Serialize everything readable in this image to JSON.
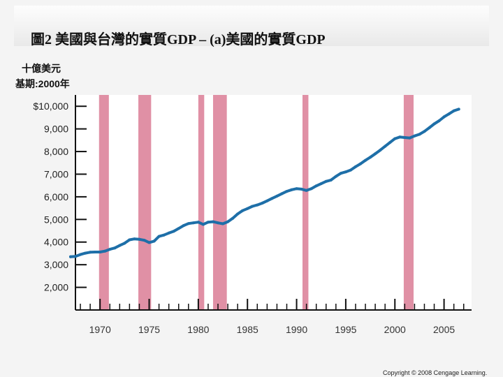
{
  "header": {
    "title": "圖2 美國與台灣的實質GDP – (a)美國的實質GDP",
    "unit_line1": "十億美元",
    "unit_line2": "基期:2000年"
  },
  "footer": {
    "copyright": "Copyright © 2008 Cengage Learning."
  },
  "colors": {
    "line": "#1e6fa8",
    "recession": "#e090a5",
    "axis": "#111111"
  },
  "chart_data": {
    "type": "line",
    "title": "美國的實質GDP",
    "xlabel": "",
    "ylabel": "十億美元 基期:2000年",
    "xlim": [
      1967.5,
      2007.8
    ],
    "ylim": [
      1000,
      10500
    ],
    "x_tick_values": [
      1970,
      1975,
      1980,
      1985,
      1990,
      1995,
      2000,
      2005
    ],
    "x_tick_labels": [
      "1970",
      "1975",
      "1980",
      "1985",
      "1990",
      "1995",
      "2000",
      "2005"
    ],
    "y_tick_values": [
      10000,
      9000,
      8000,
      7000,
      6000,
      5000,
      4000,
      3000,
      2000
    ],
    "y_tick_labels": [
      "$10,000",
      "9,000",
      "8,000",
      "7,000",
      "6,000",
      "5,000",
      "4,000",
      "3,000",
      "2,000"
    ],
    "recessions": [
      {
        "start": 1969.9,
        "end": 1970.9
      },
      {
        "start": 1973.9,
        "end": 1975.2
      },
      {
        "start": 1980.0,
        "end": 1980.6
      },
      {
        "start": 1981.5,
        "end": 1982.9
      },
      {
        "start": 1990.6,
        "end": 1991.2
      },
      {
        "start": 2000.9,
        "end": 2001.9
      }
    ],
    "series": [
      {
        "name": "美國實質GDP",
        "x": [
          1967.0,
          1967.5,
          1968.0,
          1968.5,
          1969.0,
          1969.5,
          1970.0,
          1970.5,
          1971.0,
          1971.5,
          1972.0,
          1972.5,
          1973.0,
          1973.5,
          1974.0,
          1974.5,
          1975.0,
          1975.5,
          1976.0,
          1976.5,
          1977.0,
          1977.5,
          1978.0,
          1978.5,
          1979.0,
          1979.5,
          1980.0,
          1980.5,
          1981.0,
          1981.5,
          1982.0,
          1982.5,
          1983.0,
          1983.5,
          1984.0,
          1984.5,
          1985.0,
          1985.5,
          1986.0,
          1986.5,
          1987.0,
          1987.5,
          1988.0,
          1988.5,
          1989.0,
          1989.5,
          1990.0,
          1990.5,
          1991.0,
          1991.5,
          1992.0,
          1992.5,
          1993.0,
          1993.5,
          1994.0,
          1994.5,
          1995.0,
          1995.5,
          1996.0,
          1996.5,
          1997.0,
          1997.5,
          1998.0,
          1998.5,
          1999.0,
          1999.5,
          2000.0,
          2000.5,
          2001.0,
          2001.5,
          2002.0,
          2002.5,
          2003.0,
          2003.5,
          2004.0,
          2004.5,
          2005.0,
          2005.5,
          2006.0,
          2006.5
        ],
        "values": [
          3350,
          3370,
          3450,
          3510,
          3550,
          3560,
          3560,
          3600,
          3680,
          3740,
          3850,
          3950,
          4100,
          4140,
          4120,
          4080,
          3980,
          4040,
          4250,
          4310,
          4400,
          4480,
          4600,
          4730,
          4820,
          4850,
          4880,
          4780,
          4880,
          4900,
          4850,
          4810,
          4900,
          5050,
          5240,
          5390,
          5480,
          5580,
          5640,
          5720,
          5820,
          5930,
          6030,
          6140,
          6240,
          6310,
          6360,
          6340,
          6280,
          6360,
          6480,
          6580,
          6680,
          6740,
          6900,
          7040,
          7100,
          7180,
          7330,
          7460,
          7610,
          7750,
          7900,
          8060,
          8230,
          8400,
          8570,
          8640,
          8620,
          8600,
          8690,
          8760,
          8890,
          9050,
          9220,
          9360,
          9530,
          9660,
          9800,
          9870
        ]
      }
    ]
  }
}
